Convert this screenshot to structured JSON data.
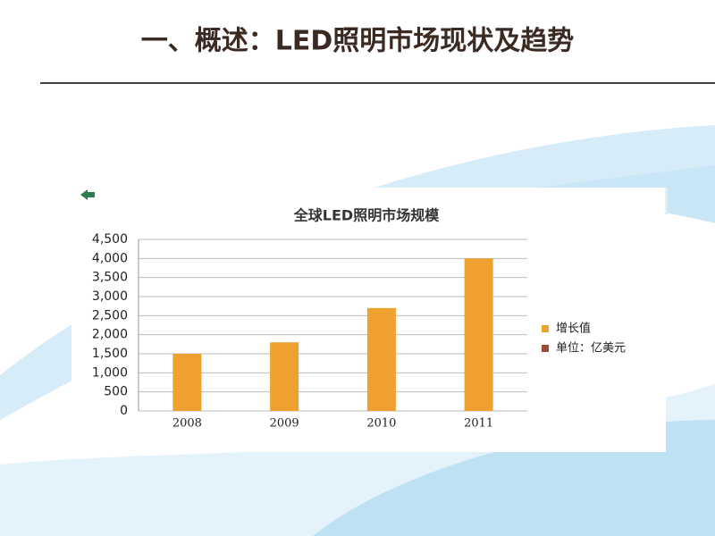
{
  "slide_title": "一、概述：LED照明市场现状及趋势",
  "chart_data": {
    "type": "bar",
    "title": "全球LED照明市场规模",
    "categories": [
      "2008",
      "2009",
      "2010",
      "2011"
    ],
    "series": [
      {
        "name": "增长值",
        "color": "#eea12f",
        "values": [
          1500,
          1800,
          2700,
          4000
        ]
      }
    ],
    "unit_note": {
      "label": "单位：亿美元",
      "color": "#9c4a32"
    },
    "ylim": [
      0,
      4500
    ],
    "yticks": [
      0,
      500,
      {
        "value": 1000,
        "label": "1,000"
      },
      {
        "value": 1500,
        "label": "1,500"
      },
      {
        "value": 2000,
        "label": "2,000"
      },
      {
        "value": 2500,
        "label": "2,500"
      },
      {
        "value": 3000,
        "label": "3,000"
      },
      {
        "value": 3500,
        "label": "3,500"
      },
      {
        "value": 4000,
        "label": "4,000"
      },
      {
        "value": 4500,
        "label": "4,500"
      }
    ],
    "grid": true
  }
}
